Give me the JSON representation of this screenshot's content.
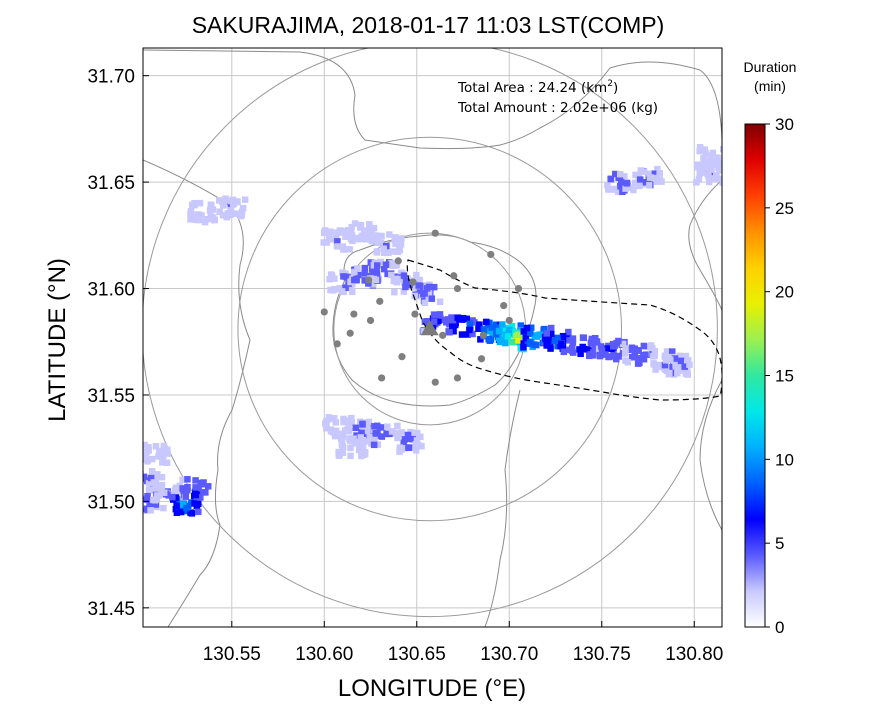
{
  "chart_data": {
    "type": "heatmap",
    "title": "SAKURAJIMA, 2018-01-17 11:03 LST(COMP)",
    "xlabel": "LONGITUDE (°E)",
    "ylabel": "LATITUDE (°N)",
    "xlim": [
      130.502,
      130.815
    ],
    "ylim": [
      31.441,
      31.713
    ],
    "x_ticks": [
      "130.55",
      "130.60",
      "130.65",
      "130.70",
      "130.75",
      "130.80"
    ],
    "x_tick_values": [
      130.55,
      130.6,
      130.65,
      130.7,
      130.75,
      130.8
    ],
    "y_ticks": [
      "31.45",
      "31.50",
      "31.55",
      "31.60",
      "31.65",
      "31.70"
    ],
    "y_tick_values": [
      31.45,
      31.5,
      31.55,
      31.6,
      31.65,
      31.7
    ],
    "grid": true,
    "annotations": {
      "area_label": "Total Area   : 24.24 (km",
      "area_sup": "2",
      "area_close": ")",
      "amount_label": "Total Amount : 2.02e+06 (kg)"
    },
    "colorbar": {
      "title_line1": "Duration",
      "title_line2": "(min)",
      "ticks": [
        "0",
        "5",
        "10",
        "15",
        "20",
        "25",
        "30"
      ],
      "tick_values": [
        0,
        5,
        10,
        15,
        20,
        25,
        30
      ],
      "range": [
        0,
        30
      ],
      "colors": [
        "#ffffff",
        "#c8c8ff",
        "#5a5aff",
        "#0000ff",
        "#0060ff",
        "#00b0ff",
        "#00e8e8",
        "#30e8a0",
        "#9cf050",
        "#e8f000",
        "#ffd000",
        "#ff9000",
        "#ff4000",
        "#e00000",
        "#800000"
      ]
    },
    "volcano": {
      "name": "SAKURAJIMA",
      "lon": 130.657,
      "lat": 31.581
    },
    "range_rings_km": [
      5,
      10,
      15
    ],
    "stations": [
      [
        130.66,
        31.626
      ],
      [
        130.64,
        31.613
      ],
      [
        130.67,
        31.606
      ],
      [
        130.69,
        31.616
      ],
      [
        130.7,
        31.585
      ],
      [
        130.63,
        31.594
      ],
      [
        130.648,
        31.603
      ],
      [
        130.616,
        31.588
      ],
      [
        130.625,
        31.585
      ],
      [
        130.649,
        31.588
      ],
      [
        130.6,
        31.589
      ],
      [
        130.664,
        31.578
      ],
      [
        130.705,
        31.6
      ],
      [
        130.686,
        31.578
      ],
      [
        130.685,
        31.567
      ],
      [
        130.607,
        31.574
      ],
      [
        130.642,
        31.568
      ],
      [
        130.631,
        31.558
      ],
      [
        130.66,
        31.556
      ],
      [
        130.672,
        31.558
      ],
      [
        130.697,
        31.592
      ],
      [
        130.624,
        31.604
      ],
      [
        130.672,
        31.6
      ],
      [
        130.614,
        31.579
      ]
    ],
    "ash_plumes": [
      {
        "name": "main plume",
        "points": [
          [
            130.66,
            31.584,
            6
          ],
          [
            130.675,
            31.582,
            9
          ],
          [
            130.69,
            31.58,
            11
          ],
          [
            130.7,
            31.579,
            16
          ],
          [
            130.705,
            31.576,
            19
          ],
          [
            130.715,
            31.577,
            12
          ],
          [
            130.725,
            31.575,
            9
          ],
          [
            130.74,
            31.573,
            7
          ],
          [
            130.755,
            31.571,
            6
          ],
          [
            130.77,
            31.569,
            5
          ],
          [
            130.785,
            31.566,
            4
          ],
          [
            130.79,
            31.564,
            4
          ]
        ]
      },
      {
        "name": "north patch",
        "points": [
          [
            130.61,
            31.603,
            4
          ],
          [
            130.622,
            31.606,
            5
          ],
          [
            130.632,
            31.608,
            5
          ],
          [
            130.645,
            31.603,
            4
          ],
          [
            130.655,
            31.598,
            4
          ],
          [
            130.607,
            31.623,
            3
          ],
          [
            130.62,
            31.626,
            3
          ],
          [
            130.634,
            31.621,
            3
          ]
        ]
      },
      {
        "name": "south patch",
        "points": [
          [
            130.608,
            31.535,
            3
          ],
          [
            130.62,
            31.533,
            4
          ],
          [
            130.632,
            31.531,
            5
          ],
          [
            130.645,
            31.528,
            4
          ],
          [
            130.615,
            31.526,
            3
          ]
        ]
      },
      {
        "name": "west edge patch",
        "points": [
          [
            130.505,
            31.51,
            4
          ],
          [
            130.506,
            31.5,
            4
          ],
          [
            130.515,
            31.505,
            4
          ],
          [
            130.525,
            31.499,
            10
          ],
          [
            130.53,
            31.506,
            6
          ],
          [
            130.508,
            31.522,
            3
          ]
        ]
      },
      {
        "name": "northeast patches",
        "points": [
          [
            130.535,
            31.636,
            3
          ],
          [
            130.55,
            31.638,
            3
          ],
          [
            130.76,
            31.65,
            4
          ],
          [
            130.775,
            31.652,
            4
          ],
          [
            130.808,
            31.654,
            3
          ],
          [
            130.81,
            31.662,
            3
          ]
        ]
      }
    ]
  }
}
